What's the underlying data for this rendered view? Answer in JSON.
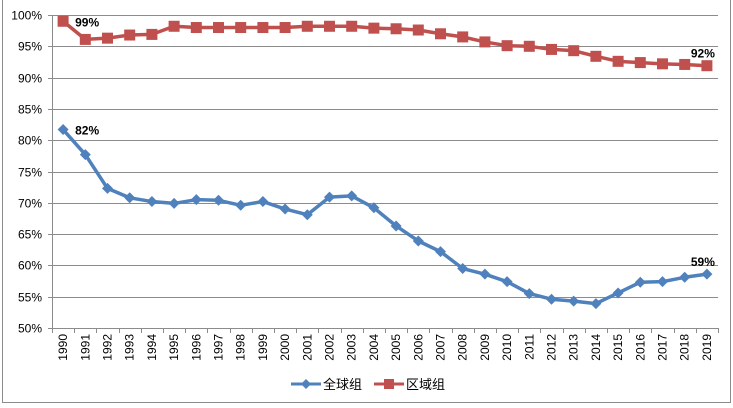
{
  "chart_data": {
    "type": "line",
    "title": "",
    "xlabel": "",
    "ylabel": "",
    "ylim": [
      0.5,
      1.0
    ],
    "y_ticks": [
      "50%",
      "55%",
      "60%",
      "65%",
      "70%",
      "75%",
      "80%",
      "85%",
      "90%",
      "95%",
      "100%"
    ],
    "grid": true,
    "legend_position": "bottom",
    "x": [
      "1990",
      "1991",
      "1992",
      "1993",
      "1994",
      "1995",
      "1996",
      "1997",
      "1998",
      "1999",
      "2000",
      "2001",
      "2002",
      "2003",
      "2004",
      "2005",
      "2006",
      "2007",
      "2008",
      "2009",
      "2010",
      "2011",
      "2012",
      "2013",
      "2014",
      "2015",
      "2016",
      "2017",
      "2018",
      "2019"
    ],
    "series": [
      {
        "name": "全球组",
        "color": "#4f81bd",
        "marker": "diamond",
        "values": [
          0.817,
          0.777,
          0.723,
          0.708,
          0.702,
          0.699,
          0.705,
          0.704,
          0.696,
          0.702,
          0.69,
          0.681,
          0.709,
          0.711,
          0.692,
          0.663,
          0.639,
          0.622,
          0.595,
          0.586,
          0.574,
          0.555,
          0.546,
          0.543,
          0.539,
          0.556,
          0.573,
          0.574,
          0.581,
          0.586
        ]
      },
      {
        "name": "区域组",
        "color": "#c0504d",
        "marker": "square",
        "values": [
          0.99,
          0.961,
          0.963,
          0.968,
          0.969,
          0.982,
          0.98,
          0.98,
          0.98,
          0.98,
          0.98,
          0.982,
          0.982,
          0.982,
          0.979,
          0.978,
          0.976,
          0.97,
          0.965,
          0.957,
          0.951,
          0.95,
          0.945,
          0.943,
          0.934,
          0.926,
          0.924,
          0.922,
          0.921,
          0.919
        ]
      }
    ],
    "annotations": [
      {
        "series": "全球组",
        "x": "1990",
        "text": "82%"
      },
      {
        "series": "全球组",
        "x": "2019",
        "text": "59%"
      },
      {
        "series": "区域组",
        "x": "1990",
        "text": "99%"
      },
      {
        "series": "区域组",
        "x": "2019",
        "text": "92%"
      }
    ]
  },
  "legend": {
    "items": [
      {
        "label": "全球组",
        "color": "#4f81bd"
      },
      {
        "label": "区域组",
        "color": "#c0504d"
      }
    ]
  }
}
